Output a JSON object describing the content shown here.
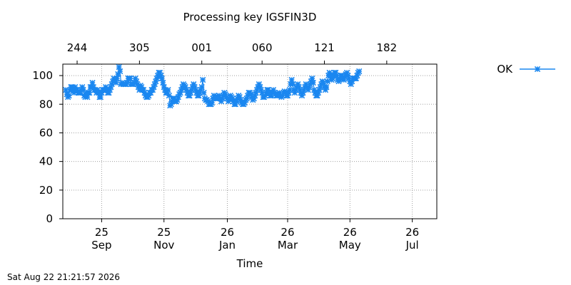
{
  "timestamp": "Sat Aug 22 21:21:57 2026",
  "chart_data": {
    "type": "line",
    "title": "Processing key IGSFIN3D",
    "xlabel": "Time",
    "ylabel": "",
    "x_range": [
      "2025-08-18",
      "2026-08-19"
    ],
    "ylim": [
      0,
      108
    ],
    "yticks": [
      0,
      20,
      40,
      60,
      80,
      100
    ],
    "x_ticks": [
      {
        "date": "2025-09-25",
        "line1": "25",
        "line2": "Sep"
      },
      {
        "date": "2025-11-25",
        "line1": "25",
        "line2": "Nov"
      },
      {
        "date": "2026-01-26",
        "line1": "26",
        "line2": "Jan"
      },
      {
        "date": "2026-03-26",
        "line1": "26",
        "line2": "Mar"
      },
      {
        "date": "2026-05-26",
        "line1": "26",
        "line2": "May"
      },
      {
        "date": "2026-07-26",
        "line1": "26",
        "line2": "Jul"
      }
    ],
    "top_ticks": [
      {
        "date": "2025-09-01",
        "label": "244"
      },
      {
        "date": "2025-11-01",
        "label": "305"
      },
      {
        "date": "2026-01-01",
        "label": "001"
      },
      {
        "date": "2026-03-01",
        "label": "060"
      },
      {
        "date": "2026-05-01",
        "label": "121"
      },
      {
        "date": "2026-07-01",
        "label": "182"
      }
    ],
    "grid": true,
    "legend_position": "right",
    "series": [
      {
        "name": "OK",
        "color": "#1a87f0",
        "marker": "x-star",
        "x_start": "2025-08-21",
        "x_step_days": 1,
        "values": [
          90,
          87,
          85,
          86,
          90,
          92,
          92,
          90,
          88,
          92,
          90,
          90,
          88,
          88,
          88,
          90,
          92,
          90,
          86,
          85,
          88,
          85,
          88,
          88,
          92,
          92,
          95,
          92,
          90,
          90,
          88,
          90,
          88,
          85,
          85,
          88,
          90,
          90,
          90,
          92,
          90,
          88,
          88,
          90,
          92,
          94,
          96,
          98,
          96,
          95,
          98,
          101,
          106,
          103,
          94,
          95,
          94,
          94,
          94,
          94,
          95,
          98,
          98,
          98,
          94,
          94,
          94,
          95,
          98,
          96,
          94,
          92,
          90,
          93,
          92,
          90,
          90,
          88,
          86,
          85,
          85,
          86,
          88,
          88,
          90,
          90,
          92,
          94,
          96,
          98,
          100,
          102,
          102,
          100,
          98,
          95,
          92,
          90,
          88,
          88,
          90,
          86,
          79,
          80,
          82,
          84,
          84,
          82,
          82,
          83,
          85,
          87,
          88,
          90,
          92,
          94,
          93,
          92,
          90,
          88,
          86,
          86,
          88,
          90,
          92,
          94,
          92,
          90,
          88,
          86,
          86,
          88,
          90,
          92,
          97,
          88,
          84,
          83,
          83,
          82,
          80,
          80,
          80,
          81,
          84,
          86,
          85,
          84,
          84,
          85,
          86,
          84,
          82,
          84,
          86,
          88,
          87,
          85,
          84,
          82,
          84,
          86,
          85,
          84,
          82,
          80,
          80,
          82,
          84,
          86,
          85,
          83,
          81,
          80,
          80,
          81,
          83,
          84,
          86,
          88,
          88,
          87,
          85,
          83,
          84,
          86,
          88,
          90,
          92,
          94,
          92,
          90,
          88,
          85,
          85,
          86,
          88,
          90,
          90,
          88,
          86,
          86,
          88,
          90,
          88,
          87,
          86,
          86,
          87,
          88,
          86,
          85,
          86,
          88,
          89,
          88,
          86,
          86,
          88,
          90,
          94,
          97,
          94,
          90,
          88,
          90,
          92,
          94,
          92,
          90,
          88,
          86,
          88,
          90,
          92,
          94,
          92,
          90,
          92,
          94,
          96,
          98,
          95,
          90,
          88,
          86,
          86,
          88,
          90,
          92,
          94,
          96,
          95,
          92,
          90,
          92,
          96,
          100,
          102,
          100,
          97,
          98,
          100,
          102,
          102,
          100,
          97,
          96,
          98,
          100,
          100,
          98,
          97,
          99,
          101,
          102,
          100,
          98,
          96,
          94,
          96,
          98,
          98,
          98,
          98,
          100,
          102,
          103
        ]
      }
    ]
  }
}
